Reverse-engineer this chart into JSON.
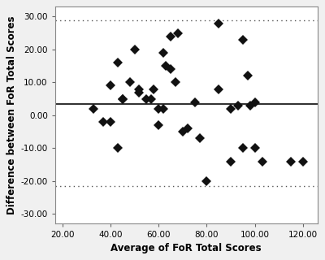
{
  "x_points": [
    33,
    37,
    40,
    40,
    43,
    43,
    45,
    45,
    48,
    50,
    52,
    52,
    55,
    57,
    58,
    60,
    60,
    62,
    62,
    63,
    65,
    65,
    67,
    68,
    70,
    72,
    75,
    77,
    80,
    85,
    85,
    90,
    90,
    93,
    95,
    95,
    97,
    98,
    100,
    100,
    103,
    115,
    120
  ],
  "y_points": [
    2,
    -2,
    -2,
    9,
    16,
    -10,
    5,
    5,
    10,
    20,
    8,
    7,
    5,
    5,
    8,
    -3,
    2,
    2,
    19,
    15,
    24,
    14,
    10,
    25,
    -5,
    -4,
    4,
    -7,
    -20,
    8,
    28,
    2,
    -14,
    3,
    23,
    -10,
    12,
    3,
    -10,
    4,
    -14,
    -14,
    -14
  ],
  "mean_line": 3.5,
  "upper_limit": 29.0,
  "lower_limit": -21.5,
  "xlim": [
    17,
    126
  ],
  "ylim": [
    -33,
    33
  ],
  "xticks": [
    20,
    40,
    60,
    80,
    100,
    120
  ],
  "yticks": [
    -30,
    -20,
    -10,
    0,
    10,
    20,
    30
  ],
  "xlabel": "Average of FoR Total Scores",
  "ylabel": "Difference between FoR Total Scores",
  "marker_color": "#111111",
  "marker_size": 6,
  "mean_line_color": "#333333",
  "loa_line_color": "#555555",
  "bg_color": "#f0f0f0",
  "plot_bg_color": "#ffffff",
  "spine_color": "#888888",
  "xlabel_fontsize": 8.5,
  "ylabel_fontsize": 8.5,
  "tick_fontsize": 7.5
}
